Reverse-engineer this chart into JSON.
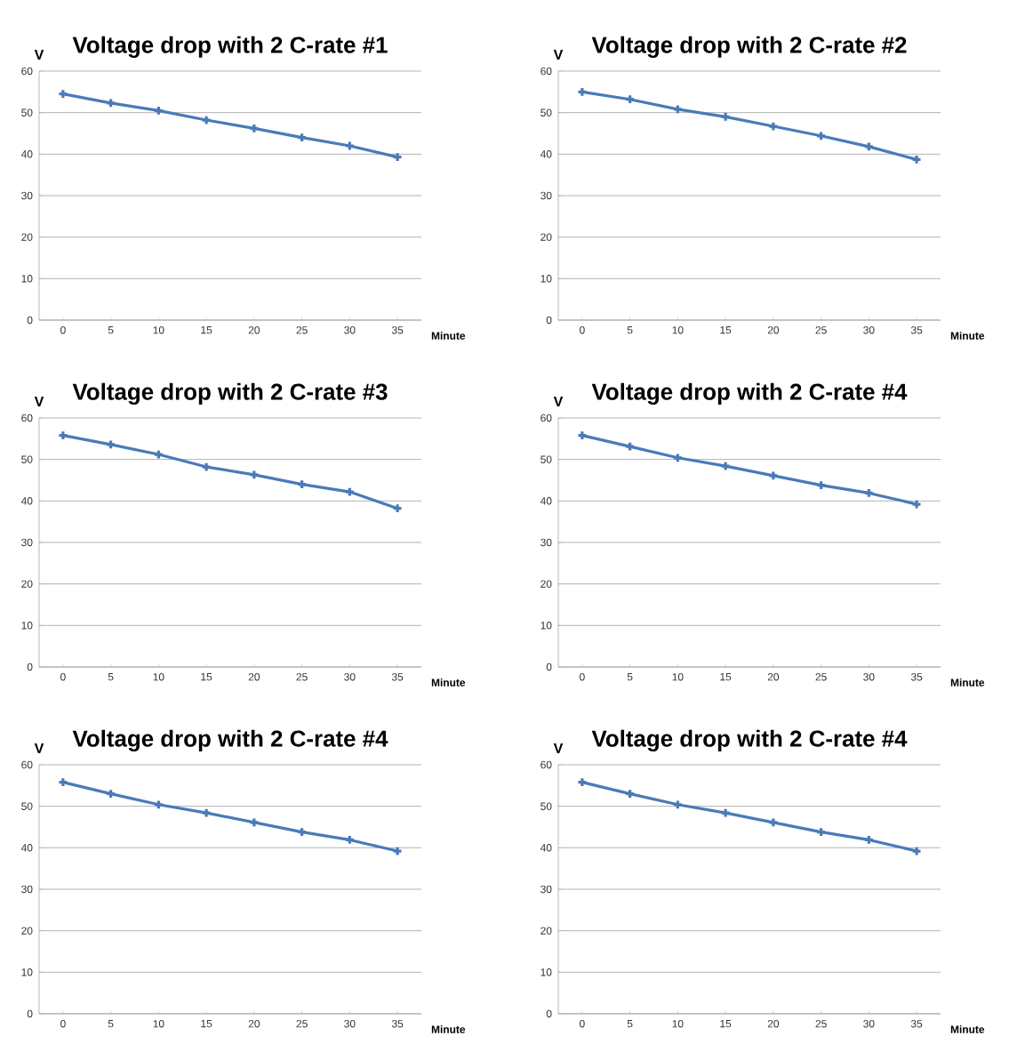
{
  "chart_data": [
    {
      "type": "line",
      "title": "Voltage drop with 2 C-rate #1",
      "xlabel": "Minute",
      "ylabel": "V",
      "categories": [
        "0",
        "5",
        "10",
        "15",
        "20",
        "25",
        "30",
        "35"
      ],
      "values": [
        54.5,
        52.3,
        50.5,
        48.2,
        46.2,
        44,
        42,
        39.3
      ],
      "color": "#4a7ab8",
      "ylim": [
        0,
        60
      ],
      "yticks": [
        0,
        10,
        20,
        30,
        40,
        50,
        60
      ],
      "grid": "y",
      "marker": "cross"
    },
    {
      "type": "line",
      "title": "Voltage drop with 2 C-rate #2",
      "xlabel": "Minute",
      "ylabel": "V",
      "categories": [
        "0",
        "5",
        "10",
        "15",
        "20",
        "25",
        "30",
        "35"
      ],
      "values": [
        55,
        53.2,
        50.8,
        49,
        46.7,
        44.4,
        41.8,
        38.7
      ],
      "color": "#4a7ab8",
      "ylim": [
        0,
        60
      ],
      "yticks": [
        0,
        10,
        20,
        30,
        40,
        50,
        60
      ],
      "grid": "y",
      "marker": "cross"
    },
    {
      "type": "line",
      "title": "Voltage drop with 2 C-rate #3",
      "xlabel": "Minute",
      "ylabel": "V",
      "categories": [
        "0",
        "5",
        "10",
        "15",
        "20",
        "25",
        "30",
        "35"
      ],
      "values": [
        55.8,
        53.6,
        51.2,
        48.2,
        46.3,
        44,
        42.2,
        38.2
      ],
      "color": "#4a7ab8",
      "ylim": [
        0,
        60
      ],
      "yticks": [
        0,
        10,
        20,
        30,
        40,
        50,
        60
      ],
      "grid": "y",
      "marker": "cross"
    },
    {
      "type": "line",
      "title": "Voltage drop with 2 C-rate #4",
      "xlabel": "Minute",
      "ylabel": "V",
      "categories": [
        "0",
        "5",
        "10",
        "15",
        "20",
        "25",
        "30",
        "35"
      ],
      "values": [
        55.8,
        53.1,
        50.4,
        48.4,
        46.1,
        43.8,
        41.9,
        39.2
      ],
      "color": "#4a7ab8",
      "ylim": [
        0,
        60
      ],
      "yticks": [
        0,
        10,
        20,
        30,
        40,
        50,
        60
      ],
      "grid": "y",
      "marker": "cross"
    },
    {
      "type": "line",
      "title": "Voltage drop with 2 C-rate #4",
      "xlabel": "Minute",
      "ylabel": "V",
      "categories": [
        "0",
        "5",
        "10",
        "15",
        "20",
        "25",
        "30",
        "35"
      ],
      "values": [
        55.8,
        53,
        50.4,
        48.4,
        46.1,
        43.8,
        41.9,
        39.2
      ],
      "color": "#4a7ab8",
      "ylim": [
        0,
        60
      ],
      "yticks": [
        0,
        10,
        20,
        30,
        40,
        50,
        60
      ],
      "grid": "y",
      "marker": "cross"
    },
    {
      "type": "line",
      "title": "Voltage drop with 2 C-rate #4",
      "xlabel": "Minute",
      "ylabel": "V",
      "categories": [
        "0",
        "5",
        "10",
        "15",
        "20",
        "25",
        "30",
        "35"
      ],
      "values": [
        55.8,
        53,
        50.4,
        48.4,
        46.1,
        43.8,
        41.9,
        39.2
      ],
      "color": "#4a7ab8",
      "ylim": [
        0,
        60
      ],
      "yticks": [
        0,
        10,
        20,
        30,
        40,
        50,
        60
      ],
      "grid": "y",
      "marker": "cross"
    }
  ]
}
